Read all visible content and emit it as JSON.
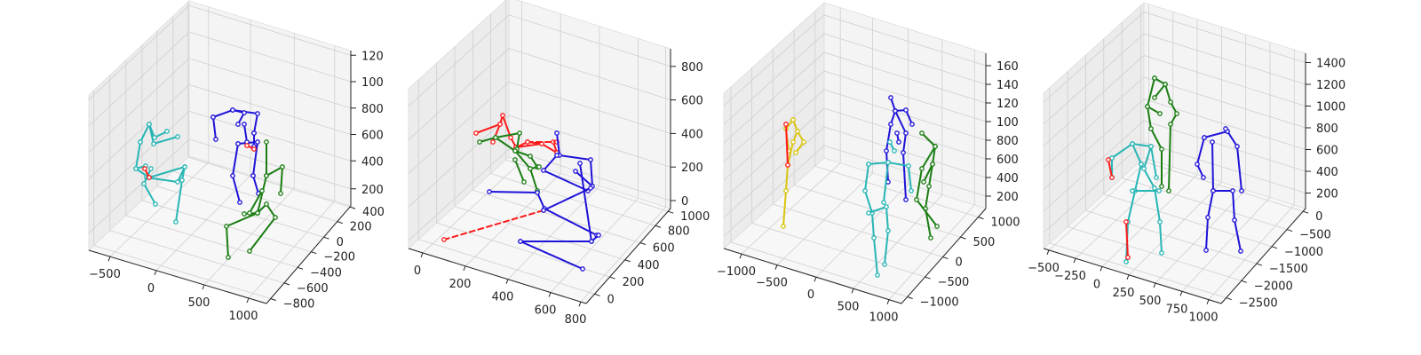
{
  "colors": {
    "blue": "#1f12d8",
    "green": "#1a7d12",
    "cyan": "#27b5b5",
    "red": "#ff1a1a",
    "yellow": "#d9c40f",
    "pane_left": "#ececec",
    "pane_right": "#f4f4f4",
    "pane_floor": "#f7f7f7"
  },
  "chart_data": [
    {
      "type": "scatter",
      "kind": "3d-skeleton-plot",
      "xlim": [
        -900,
        1250
      ],
      "ylim": [
        -900,
        500
      ],
      "zlim": [
        0,
        1300
      ],
      "x_ticks": [
        "−500",
        "0",
        "500",
        "1000"
      ],
      "y_ticks": [
        "−800",
        "−600",
        "−400",
        "−200",
        "0",
        "200",
        "400"
      ],
      "z_ticks": [
        "200",
        "400",
        "600",
        "800",
        "100",
        "120"
      ],
      "series": [
        {
          "color": "cyan",
          "skeleton": "cyan"
        },
        {
          "color": "blue",
          "skeleton": "blue"
        },
        {
          "color": "green",
          "skeleton": "green"
        }
      ]
    },
    {
      "type": "scatter",
      "kind": "3d-skeleton-plot",
      "xlim": [
        -50,
        850
      ],
      "ylim": [
        -150,
        1100
      ],
      "zlim": [
        -50,
        900
      ],
      "x_ticks": [
        "0",
        "200",
        "400",
        "600",
        "800"
      ],
      "y_ticks": [
        "0",
        "200",
        "400",
        "600",
        "800",
        "1000"
      ],
      "z_ticks": [
        "0",
        "200",
        "400",
        "600",
        "800"
      ],
      "series": [
        {
          "color": "red",
          "skeleton": "red"
        },
        {
          "color": "green",
          "skeleton": "green"
        },
        {
          "color": "blue",
          "skeleton": "blue"
        }
      ]
    },
    {
      "type": "scatter",
      "kind": "3d-skeleton-plot",
      "xlim": [
        -1250,
        1250
      ],
      "ylim": [
        -1200,
        1300
      ],
      "zlim": [
        0,
        1700
      ],
      "x_ticks": [
        "−1000",
        "−500",
        "0",
        "500",
        "1000"
      ],
      "y_ticks": [
        "−1000",
        "−500",
        "0",
        "500",
        "1000"
      ],
      "z_ticks": [
        "200",
        "400",
        "600",
        "800",
        "100",
        "120",
        "140",
        "160"
      ],
      "series": [
        {
          "color": "yellow",
          "skeleton": "yellow"
        },
        {
          "color": "blue",
          "skeleton": "blue"
        },
        {
          "color": "cyan",
          "skeleton": "cyan"
        },
        {
          "color": "green",
          "skeleton": "green"
        }
      ]
    },
    {
      "type": "scatter",
      "kind": "3d-skeleton-plot",
      "xlim": [
        -600,
        1150
      ],
      "ylim": [
        -2700,
        200
      ],
      "zlim": [
        0,
        1500
      ],
      "x_ticks": [
        "−500",
        "−250",
        "0",
        "250",
        "500",
        "750",
        "1000"
      ],
      "y_ticks": [
        "−2500",
        "−2000",
        "−1500",
        "−1000",
        "−500",
        "0"
      ],
      "z_ticks": [
        "200",
        "400",
        "600",
        "800",
        "1000",
        "1200",
        "1400"
      ],
      "series": [
        {
          "color": "cyan",
          "skeleton": "cyan"
        },
        {
          "color": "green",
          "skeleton": "green"
        },
        {
          "color": "blue",
          "skeleton": "blue"
        }
      ]
    }
  ]
}
